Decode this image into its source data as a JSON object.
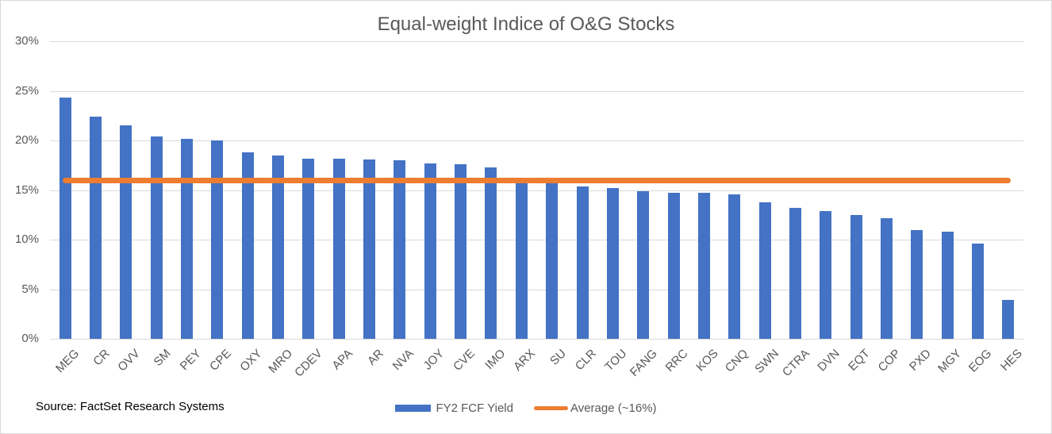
{
  "title": "Equal-weight Indice of O&G Stocks",
  "source_note": "Source: FactSet Research Systems",
  "legend": {
    "series1_label": "FY2 FCF Yield",
    "series2_label": "Average (~16%)"
  },
  "colors": {
    "bar": "#4472C4",
    "average_line": "#ED7D31",
    "gridline": "#D9D9D9",
    "axis_text": "#595959",
    "title_text": "#595959",
    "source_text": "#000000",
    "border": "#D9D9D9",
    "background": "#FFFFFF"
  },
  "chart_data": {
    "type": "bar",
    "title": "Equal-weight Indice of O&G Stocks",
    "xlabel": "",
    "ylabel": "",
    "ylim": [
      0,
      30
    ],
    "grid": true,
    "legend_position": "bottom",
    "y_ticks": [
      {
        "value": 0,
        "label": "0%"
      },
      {
        "value": 5,
        "label": "5%"
      },
      {
        "value": 10,
        "label": "10%"
      },
      {
        "value": 15,
        "label": "15%"
      },
      {
        "value": 20,
        "label": "20%"
      },
      {
        "value": 25,
        "label": "25%"
      },
      {
        "value": 30,
        "label": "30%"
      }
    ],
    "categories": [
      "MEG",
      "CR",
      "OVV",
      "SM",
      "PEY",
      "CPE",
      "OXY",
      "MRO",
      "CDEV",
      "APA",
      "AR",
      "NVA",
      "JOY",
      "CVE",
      "IMO",
      "ARX",
      "SU",
      "CLR",
      "TOU",
      "FANG",
      "RRC",
      "KOS",
      "CNQ",
      "SWN",
      "CTRA",
      "DVN",
      "EQT",
      "COP",
      "PXD",
      "MGY",
      "EOG",
      "HES"
    ],
    "series": [
      {
        "name": "FY2 FCF Yield",
        "type": "bar",
        "values": [
          24.3,
          22.4,
          21.5,
          20.4,
          20.2,
          20.0,
          18.8,
          18.5,
          18.2,
          18.2,
          18.1,
          18.0,
          17.7,
          17.6,
          17.3,
          16.0,
          15.9,
          15.4,
          15.2,
          14.9,
          14.7,
          14.7,
          14.6,
          13.8,
          13.2,
          12.9,
          12.5,
          12.2,
          11.0,
          10.8,
          9.6,
          3.9
        ]
      },
      {
        "name": "Average (~16%)",
        "type": "line",
        "value": 16.0
      }
    ]
  }
}
